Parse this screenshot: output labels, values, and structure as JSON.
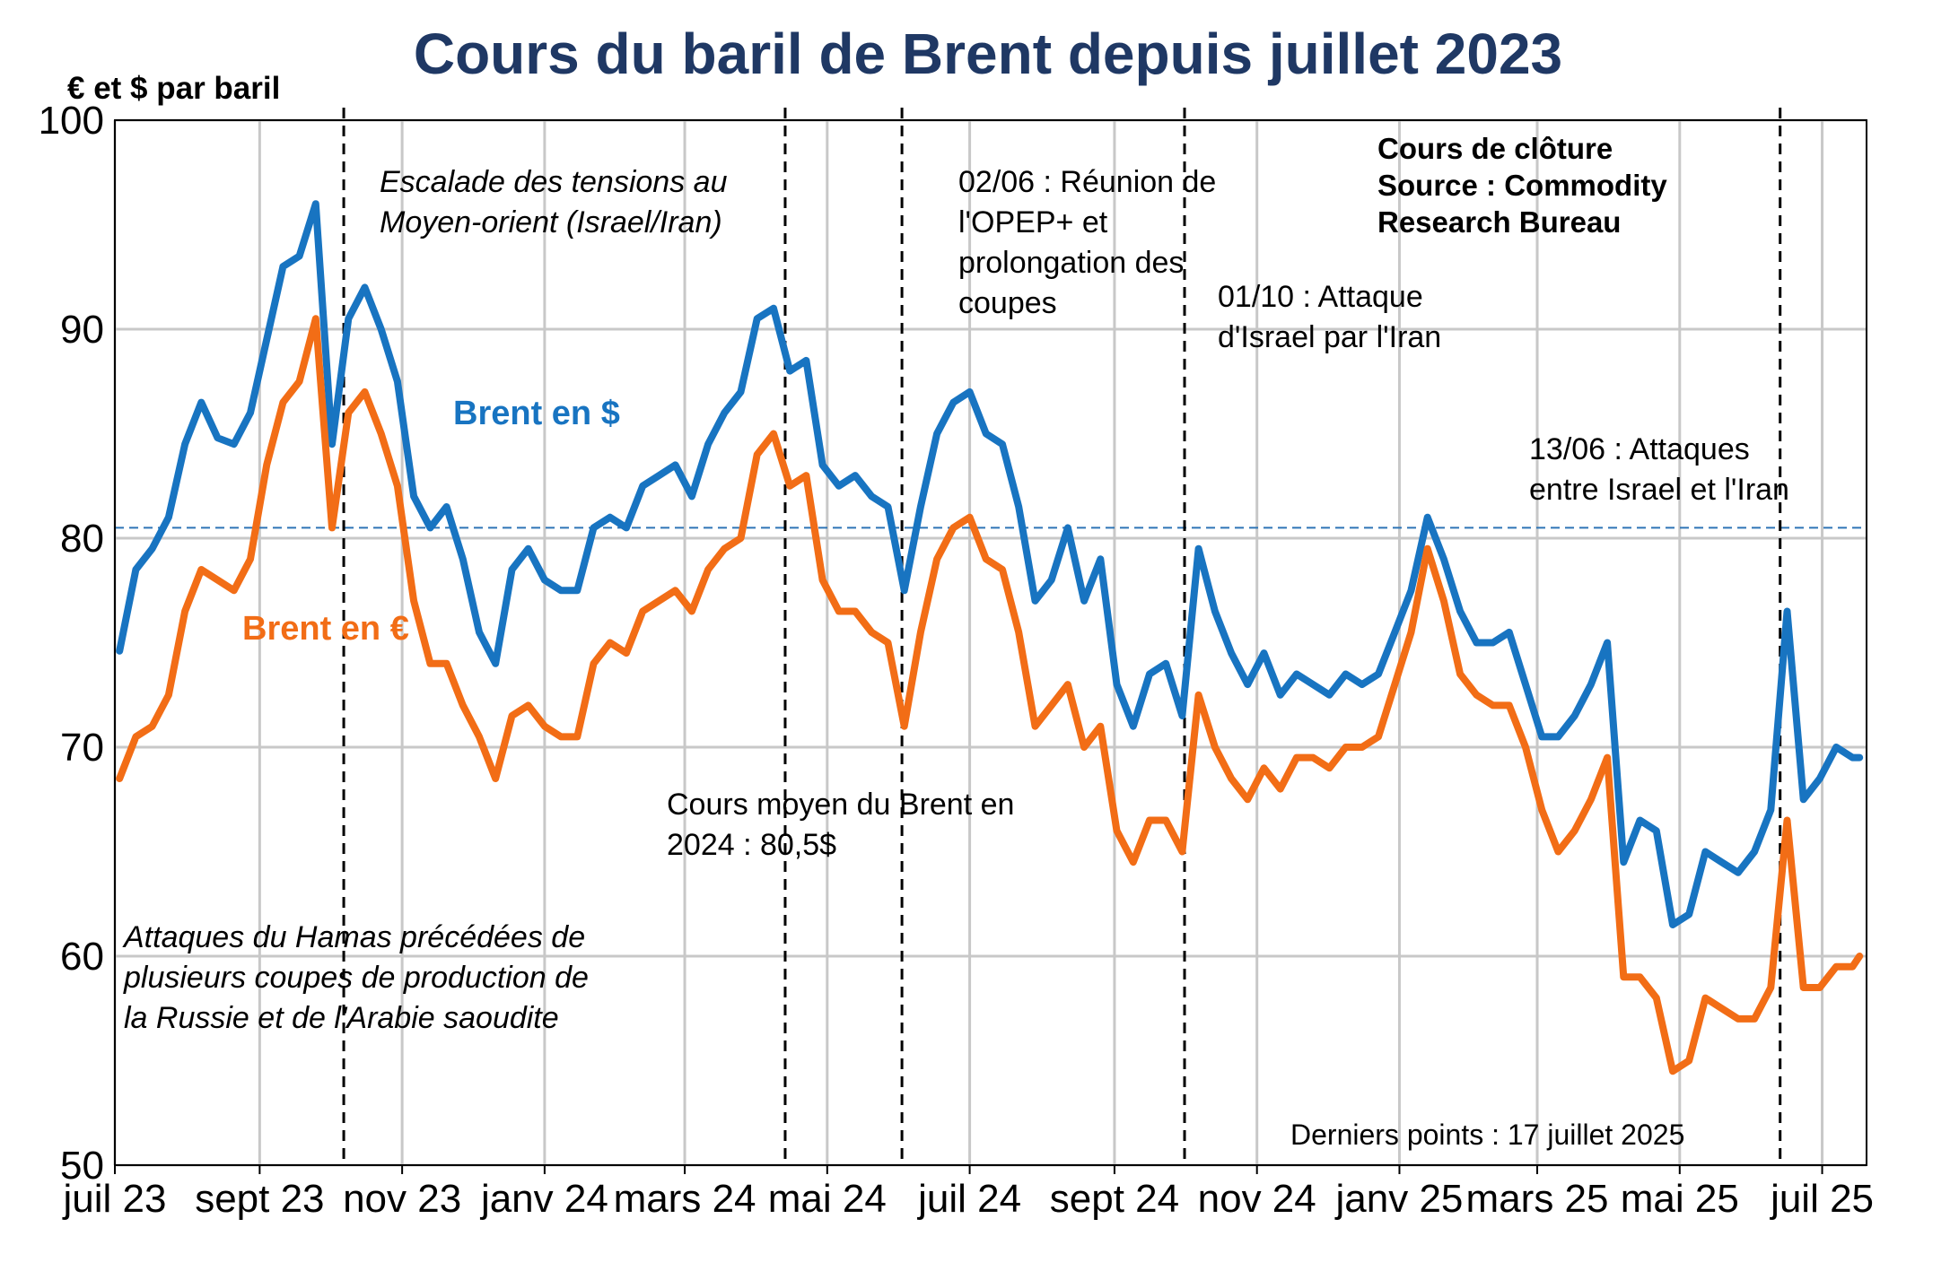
{
  "chart_data": {
    "type": "line",
    "title": "Cours du baril de Brent depuis juillet 2023",
    "ylabel": "€ et $ par baril",
    "ylim": [
      50,
      100
    ],
    "yticks": [
      50,
      60,
      70,
      80,
      90,
      100
    ],
    "xlim": [
      "2023-07-01",
      "2025-07-20"
    ],
    "xticks": [
      {
        "date": "2023-07-01",
        "label": "juil 23"
      },
      {
        "date": "2023-09-01",
        "label": "sept 23"
      },
      {
        "date": "2023-11-01",
        "label": "nov 23"
      },
      {
        "date": "2024-01-01",
        "label": "janv 24"
      },
      {
        "date": "2024-03-01",
        "label": "mars 24"
      },
      {
        "date": "2024-05-01",
        "label": "mai 24"
      },
      {
        "date": "2024-07-01",
        "label": "juil 24"
      },
      {
        "date": "2024-09-01",
        "label": "sept 24"
      },
      {
        "date": "2024-11-01",
        "label": "nov 24"
      },
      {
        "date": "2025-01-01",
        "label": "janv 25"
      },
      {
        "date": "2025-03-01",
        "label": "mars 25"
      },
      {
        "date": "2025-05-01",
        "label": "mai 25"
      },
      {
        "date": "2025-07-01",
        "label": "juil 25"
      }
    ],
    "grid": true,
    "series": [
      {
        "name": "Brent en $",
        "color": "#1874c1",
        "points": [
          [
            "2023-07-03",
            74.6
          ],
          [
            "2023-07-10",
            78.5
          ],
          [
            "2023-07-17",
            79.5
          ],
          [
            "2023-07-24",
            81.0
          ],
          [
            "2023-07-31",
            84.5
          ],
          [
            "2023-08-07",
            86.5
          ],
          [
            "2023-08-14",
            84.8
          ],
          [
            "2023-08-21",
            84.5
          ],
          [
            "2023-08-28",
            86.0
          ],
          [
            "2023-09-04",
            89.5
          ],
          [
            "2023-09-11",
            93.0
          ],
          [
            "2023-09-18",
            93.5
          ],
          [
            "2023-09-25",
            96.0
          ],
          [
            "2023-10-02",
            84.5
          ],
          [
            "2023-10-09",
            90.5
          ],
          [
            "2023-10-16",
            92.0
          ],
          [
            "2023-10-23",
            90.0
          ],
          [
            "2023-10-30",
            87.5
          ],
          [
            "2023-11-06",
            82.0
          ],
          [
            "2023-11-13",
            80.5
          ],
          [
            "2023-11-20",
            81.5
          ],
          [
            "2023-11-27",
            79.0
          ],
          [
            "2023-12-04",
            75.5
          ],
          [
            "2023-12-11",
            74.0
          ],
          [
            "2023-12-18",
            78.5
          ],
          [
            "2023-12-25",
            79.5
          ],
          [
            "2024-01-01",
            78.0
          ],
          [
            "2024-01-08",
            77.5
          ],
          [
            "2024-01-15",
            77.5
          ],
          [
            "2024-01-22",
            80.5
          ],
          [
            "2024-01-29",
            81.0
          ],
          [
            "2024-02-05",
            80.5
          ],
          [
            "2024-02-12",
            82.5
          ],
          [
            "2024-02-19",
            83.0
          ],
          [
            "2024-02-26",
            83.5
          ],
          [
            "2024-03-04",
            82.0
          ],
          [
            "2024-03-11",
            84.5
          ],
          [
            "2024-03-18",
            86.0
          ],
          [
            "2024-03-25",
            87.0
          ],
          [
            "2024-04-01",
            90.5
          ],
          [
            "2024-04-08",
            91.0
          ],
          [
            "2024-04-15",
            88.0
          ],
          [
            "2024-04-22",
            88.5
          ],
          [
            "2024-04-29",
            83.5
          ],
          [
            "2024-05-06",
            82.5
          ],
          [
            "2024-05-13",
            83.0
          ],
          [
            "2024-05-20",
            82.0
          ],
          [
            "2024-05-27",
            81.5
          ],
          [
            "2024-06-03",
            77.5
          ],
          [
            "2024-06-10",
            81.5
          ],
          [
            "2024-06-17",
            85.0
          ],
          [
            "2024-06-24",
            86.5
          ],
          [
            "2024-07-01",
            87.0
          ],
          [
            "2024-07-08",
            85.0
          ],
          [
            "2024-07-15",
            84.5
          ],
          [
            "2024-07-22",
            81.5
          ],
          [
            "2024-07-29",
            77.0
          ],
          [
            "2024-08-05",
            78.0
          ],
          [
            "2024-08-12",
            80.5
          ],
          [
            "2024-08-19",
            77.0
          ],
          [
            "2024-08-26",
            79.0
          ],
          [
            "2024-09-02",
            73.0
          ],
          [
            "2024-09-09",
            71.0
          ],
          [
            "2024-09-16",
            73.5
          ],
          [
            "2024-09-23",
            74.0
          ],
          [
            "2024-09-30",
            71.5
          ],
          [
            "2024-10-07",
            79.5
          ],
          [
            "2024-10-14",
            76.5
          ],
          [
            "2024-10-21",
            74.5
          ],
          [
            "2024-10-28",
            73.0
          ],
          [
            "2024-11-04",
            74.5
          ],
          [
            "2024-11-11",
            72.5
          ],
          [
            "2024-11-18",
            73.5
          ],
          [
            "2024-11-25",
            73.0
          ],
          [
            "2024-12-02",
            72.5
          ],
          [
            "2024-12-09",
            73.5
          ],
          [
            "2024-12-16",
            73.0
          ],
          [
            "2024-12-23",
            73.5
          ],
          [
            "2024-12-30",
            75.5
          ],
          [
            "2025-01-06",
            77.5
          ],
          [
            "2025-01-13",
            81.0
          ],
          [
            "2025-01-20",
            79.0
          ],
          [
            "2025-01-27",
            76.5
          ],
          [
            "2025-02-03",
            75.0
          ],
          [
            "2025-02-10",
            75.0
          ],
          [
            "2025-02-17",
            75.5
          ],
          [
            "2025-02-24",
            73.0
          ],
          [
            "2025-03-03",
            70.5
          ],
          [
            "2025-03-10",
            70.5
          ],
          [
            "2025-03-17",
            71.5
          ],
          [
            "2025-03-24",
            73.0
          ],
          [
            "2025-03-31",
            75.0
          ],
          [
            "2025-04-07",
            64.5
          ],
          [
            "2025-04-14",
            66.5
          ],
          [
            "2025-04-21",
            66.0
          ],
          [
            "2025-04-28",
            61.5
          ],
          [
            "2025-05-05",
            62.0
          ],
          [
            "2025-05-12",
            65.0
          ],
          [
            "2025-05-19",
            64.5
          ],
          [
            "2025-05-26",
            64.0
          ],
          [
            "2025-06-02",
            65.0
          ],
          [
            "2025-06-09",
            67.0
          ],
          [
            "2025-06-16",
            76.5
          ],
          [
            "2025-06-23",
            67.5
          ],
          [
            "2025-06-30",
            68.5
          ],
          [
            "2025-07-07",
            70.0
          ],
          [
            "2025-07-14",
            69.5
          ],
          [
            "2025-07-17",
            69.5
          ]
        ]
      },
      {
        "name": "Brent en €",
        "color": "#f26d16",
        "points": [
          [
            "2023-07-03",
            68.5
          ],
          [
            "2023-07-10",
            70.5
          ],
          [
            "2023-07-17",
            71.0
          ],
          [
            "2023-07-24",
            72.5
          ],
          [
            "2023-07-31",
            76.5
          ],
          [
            "2023-08-07",
            78.5
          ],
          [
            "2023-08-14",
            78.0
          ],
          [
            "2023-08-21",
            77.5
          ],
          [
            "2023-08-28",
            79.0
          ],
          [
            "2023-09-04",
            83.5
          ],
          [
            "2023-09-11",
            86.5
          ],
          [
            "2023-09-18",
            87.5
          ],
          [
            "2023-09-25",
            90.5
          ],
          [
            "2023-10-02",
            80.5
          ],
          [
            "2023-10-09",
            86.0
          ],
          [
            "2023-10-16",
            87.0
          ],
          [
            "2023-10-23",
            85.0
          ],
          [
            "2023-10-30",
            82.5
          ],
          [
            "2023-11-06",
            77.0
          ],
          [
            "2023-11-13",
            74.0
          ],
          [
            "2023-11-20",
            74.0
          ],
          [
            "2023-11-27",
            72.0
          ],
          [
            "2023-12-04",
            70.5
          ],
          [
            "2023-12-11",
            68.5
          ],
          [
            "2023-12-18",
            71.5
          ],
          [
            "2023-12-25",
            72.0
          ],
          [
            "2024-01-01",
            71.0
          ],
          [
            "2024-01-08",
            70.5
          ],
          [
            "2024-01-15",
            70.5
          ],
          [
            "2024-01-22",
            74.0
          ],
          [
            "2024-01-29",
            75.0
          ],
          [
            "2024-02-05",
            74.5
          ],
          [
            "2024-02-12",
            76.5
          ],
          [
            "2024-02-19",
            77.0
          ],
          [
            "2024-02-26",
            77.5
          ],
          [
            "2024-03-04",
            76.5
          ],
          [
            "2024-03-11",
            78.5
          ],
          [
            "2024-03-18",
            79.5
          ],
          [
            "2024-03-25",
            80.0
          ],
          [
            "2024-04-01",
            84.0
          ],
          [
            "2024-04-08",
            85.0
          ],
          [
            "2024-04-15",
            82.5
          ],
          [
            "2024-04-22",
            83.0
          ],
          [
            "2024-04-29",
            78.0
          ],
          [
            "2024-05-06",
            76.5
          ],
          [
            "2024-05-13",
            76.5
          ],
          [
            "2024-05-20",
            75.5
          ],
          [
            "2024-05-27",
            75.0
          ],
          [
            "2024-06-03",
            71.0
          ],
          [
            "2024-06-10",
            75.5
          ],
          [
            "2024-06-17",
            79.0
          ],
          [
            "2024-06-24",
            80.5
          ],
          [
            "2024-07-01",
            81.0
          ],
          [
            "2024-07-08",
            79.0
          ],
          [
            "2024-07-15",
            78.5
          ],
          [
            "2024-07-22",
            75.5
          ],
          [
            "2024-07-29",
            71.0
          ],
          [
            "2024-08-05",
            72.0
          ],
          [
            "2024-08-12",
            73.0
          ],
          [
            "2024-08-19",
            70.0
          ],
          [
            "2024-08-26",
            71.0
          ],
          [
            "2024-09-02",
            66.0
          ],
          [
            "2024-09-09",
            64.5
          ],
          [
            "2024-09-16",
            66.5
          ],
          [
            "2024-09-23",
            66.5
          ],
          [
            "2024-09-30",
            65.0
          ],
          [
            "2024-10-07",
            72.5
          ],
          [
            "2024-10-14",
            70.0
          ],
          [
            "2024-10-21",
            68.5
          ],
          [
            "2024-10-28",
            67.5
          ],
          [
            "2024-11-04",
            69.0
          ],
          [
            "2024-11-11",
            68.0
          ],
          [
            "2024-11-18",
            69.5
          ],
          [
            "2024-11-25",
            69.5
          ],
          [
            "2024-12-02",
            69.0
          ],
          [
            "2024-12-09",
            70.0
          ],
          [
            "2024-12-16",
            70.0
          ],
          [
            "2024-12-23",
            70.5
          ],
          [
            "2024-12-30",
            73.0
          ],
          [
            "2025-01-06",
            75.5
          ],
          [
            "2025-01-13",
            79.5
          ],
          [
            "2025-01-20",
            77.0
          ],
          [
            "2025-01-27",
            73.5
          ],
          [
            "2025-02-03",
            72.5
          ],
          [
            "2025-02-10",
            72.0
          ],
          [
            "2025-02-17",
            72.0
          ],
          [
            "2025-02-24",
            70.0
          ],
          [
            "2025-03-03",
            67.0
          ],
          [
            "2025-03-10",
            65.0
          ],
          [
            "2025-03-17",
            66.0
          ],
          [
            "2025-03-24",
            67.5
          ],
          [
            "2025-03-31",
            69.5
          ],
          [
            "2025-04-07",
            59.0
          ],
          [
            "2025-04-14",
            59.0
          ],
          [
            "2025-04-21",
            58.0
          ],
          [
            "2025-04-28",
            54.5
          ],
          [
            "2025-05-05",
            55.0
          ],
          [
            "2025-05-12",
            58.0
          ],
          [
            "2025-05-19",
            57.5
          ],
          [
            "2025-05-26",
            57.0
          ],
          [
            "2025-06-02",
            57.0
          ],
          [
            "2025-06-09",
            58.5
          ],
          [
            "2025-06-16",
            66.5
          ],
          [
            "2025-06-23",
            58.5
          ],
          [
            "2025-06-30",
            58.5
          ],
          [
            "2025-07-07",
            59.5
          ],
          [
            "2025-07-14",
            59.5
          ],
          [
            "2025-07-17",
            60.0
          ]
        ]
      }
    ],
    "reference_line": {
      "y": 80.5,
      "color": "#2e75b6"
    },
    "event_lines": [
      "2023-10-07",
      "2024-04-13",
      "2024-06-02",
      "2024-10-01",
      "2025-06-13"
    ],
    "annotations": {
      "escalade": [
        "Escalade des tensions au",
        "Moyen-orient (Israel/Iran)"
      ],
      "opep": [
        "02/06 : Réunion de",
        "l'OPEP+ et",
        "prolongation des",
        "coupes"
      ],
      "attaque_oct": [
        "01/10 : Attaque",
        "d'Israel par l'Iran"
      ],
      "attaque_juin": [
        "13/06 : Attaques",
        "entre Israel et l'Iran"
      ],
      "hamas": [
        "Attaques du Hamas précédées de",
        "plusieurs coupes de production de",
        "la Russie et de l'Arabie saoudite"
      ],
      "moyen": [
        "Cours moyen du Brent en",
        "2024 : 80,5$"
      ],
      "source": [
        "Cours de clôture",
        "Source : Commodity",
        "Research Bureau"
      ],
      "derniers": "Derniers points : 17 juillet 2025"
    },
    "series_labels": {
      "usd": "Brent en $",
      "eur": "Brent en €"
    }
  }
}
